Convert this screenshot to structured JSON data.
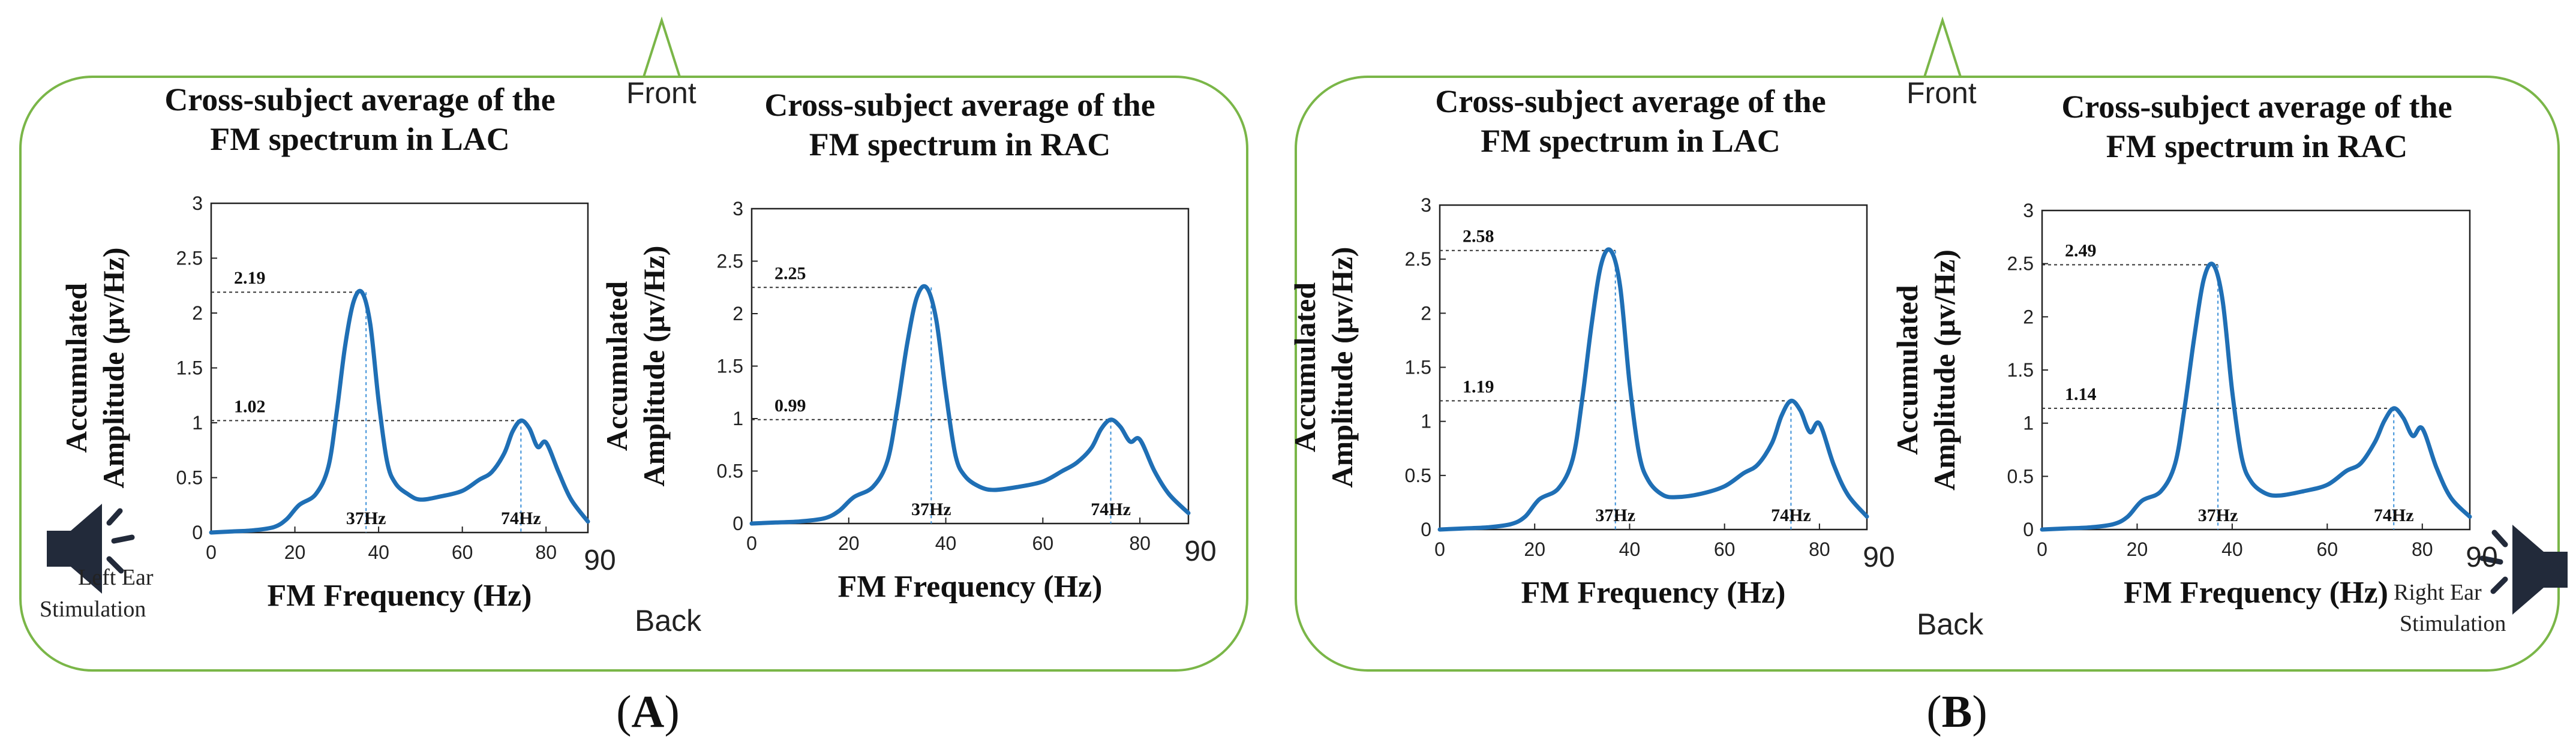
{
  "panels": [
    {
      "label": "A",
      "front_label": "Front",
      "back_label": "Back",
      "stimulation": "Left Ear Stimulation",
      "stimulation_lines": [
        "Left Ear",
        "Stimulation"
      ],
      "stimulation_side": "left"
    },
    {
      "label": "B",
      "front_label": "Front",
      "back_label": "Back",
      "stimulation": "Right Ear Stimulation",
      "stimulation_lines": [
        "Right Ear",
        "Stimulation"
      ],
      "stimulation_side": "right"
    }
  ],
  "colors": {
    "border": "#7ab648",
    "line": "#1f6fb5",
    "axis": "#222222",
    "guide": "#333333",
    "guide_vertical": "#3a8fd8",
    "speaker": "#222a3a"
  },
  "icons": [
    "speaker-icon",
    "triangle-front-marker"
  ],
  "chart_data": [
    {
      "id": "A-LAC",
      "type": "line",
      "title_lines": [
        "Cross-subject average of the",
        "FM spectrum in LAC"
      ],
      "xlabel": "FM Frequency (Hz)",
      "ylabel_lines": [
        "Accumulated",
        "Amplitude (μv/Hz)"
      ],
      "xlim": [
        0,
        90
      ],
      "ylim": [
        0,
        3
      ],
      "xticks": [
        "0",
        "20",
        "40",
        "60",
        "80",
        "90"
      ],
      "yticks": [
        "0",
        "0.5",
        "1",
        "1.5",
        "2",
        "2.5",
        "3"
      ],
      "x": [
        0,
        5,
        10,
        15,
        18,
        21,
        25,
        28,
        30,
        32,
        34,
        36,
        38,
        40,
        42,
        44,
        47,
        50,
        55,
        60,
        64,
        67,
        70,
        72,
        74,
        76,
        78,
        80,
        83,
        86,
        90
      ],
      "y": [
        0,
        0.01,
        0.02,
        0.05,
        0.12,
        0.25,
        0.35,
        0.6,
        1.1,
        1.7,
        2.1,
        2.19,
        1.9,
        1.2,
        0.65,
        0.45,
        0.35,
        0.3,
        0.33,
        0.38,
        0.48,
        0.55,
        0.72,
        0.92,
        1.02,
        0.95,
        0.78,
        0.82,
        0.55,
        0.3,
        0.1
      ],
      "peaks": [
        {
          "x": 37,
          "y": 2.19,
          "value_label": "2.19",
          "freq_label": "37Hz"
        },
        {
          "x": 74,
          "y": 1.02,
          "value_label": "1.02",
          "freq_label": "74Hz"
        }
      ]
    },
    {
      "id": "A-RAC",
      "type": "line",
      "title_lines": [
        "Cross-subject average of the",
        "FM spectrum in RAC"
      ],
      "xlabel": "FM Frequency (Hz)",
      "ylabel_lines": [
        "Accumulated",
        "Amplitude (μv/Hz)"
      ],
      "xlim": [
        0,
        90
      ],
      "ylim": [
        0,
        3
      ],
      "xticks": [
        "0",
        "20",
        "40",
        "60",
        "80",
        "90"
      ],
      "yticks": [
        "0",
        "0.5",
        "1",
        "1.5",
        "2",
        "2.5",
        "3"
      ],
      "x": [
        0,
        5,
        10,
        15,
        18,
        21,
        25,
        28,
        30,
        32,
        34,
        36,
        38,
        40,
        42,
        44,
        47,
        50,
        55,
        60,
        64,
        67,
        70,
        72,
        74,
        76,
        78,
        80,
        83,
        86,
        90
      ],
      "y": [
        0,
        0.01,
        0.02,
        0.05,
        0.12,
        0.25,
        0.35,
        0.6,
        1.1,
        1.7,
        2.15,
        2.25,
        1.95,
        1.25,
        0.65,
        0.45,
        0.35,
        0.32,
        0.35,
        0.4,
        0.5,
        0.58,
        0.72,
        0.9,
        0.99,
        0.92,
        0.78,
        0.8,
        0.5,
        0.28,
        0.1
      ],
      "peaks": [
        {
          "x": 37,
          "y": 2.25,
          "value_label": "2.25",
          "freq_label": "37Hz"
        },
        {
          "x": 74,
          "y": 0.99,
          "value_label": "0.99",
          "freq_label": "74Hz"
        }
      ]
    },
    {
      "id": "B-LAC",
      "type": "line",
      "title_lines": [
        "Cross-subject average of the",
        "FM spectrum in LAC"
      ],
      "xlabel": "FM Frequency (Hz)",
      "ylabel_lines": [
        "Accumulated",
        "Amplitude (μv/Hz)"
      ],
      "xlim": [
        0,
        90
      ],
      "ylim": [
        0,
        3
      ],
      "xticks": [
        "0",
        "20",
        "40",
        "60",
        "80",
        "90"
      ],
      "yticks": [
        "0",
        "0.5",
        "1",
        "1.5",
        "2",
        "2.5",
        "3"
      ],
      "x": [
        0,
        5,
        10,
        15,
        18,
        21,
        25,
        28,
        30,
        32,
        34,
        36,
        38,
        40,
        42,
        44,
        47,
        50,
        55,
        60,
        64,
        67,
        70,
        72,
        74,
        76,
        78,
        80,
        83,
        86,
        90
      ],
      "y": [
        0,
        0.01,
        0.02,
        0.05,
        0.12,
        0.28,
        0.38,
        0.65,
        1.2,
        1.9,
        2.45,
        2.58,
        2.25,
        1.35,
        0.7,
        0.45,
        0.32,
        0.3,
        0.33,
        0.4,
        0.52,
        0.6,
        0.8,
        1.05,
        1.19,
        1.1,
        0.9,
        0.98,
        0.6,
        0.32,
        0.12
      ],
      "peaks": [
        {
          "x": 37,
          "y": 2.58,
          "value_label": "2.58",
          "freq_label": "37Hz"
        },
        {
          "x": 74,
          "y": 1.19,
          "value_label": "1.19",
          "freq_label": "74Hz"
        }
      ]
    },
    {
      "id": "B-RAC",
      "type": "line",
      "title_lines": [
        "Cross-subject average of the",
        "FM spectrum in RAC"
      ],
      "xlabel": "FM Frequency (Hz)",
      "ylabel_lines": [
        "Accumulated",
        "Amplitude (μv/Hz)"
      ],
      "xlim": [
        0,
        90
      ],
      "ylim": [
        0,
        3
      ],
      "xticks": [
        "0",
        "20",
        "40",
        "60",
        "80",
        "90"
      ],
      "yticks": [
        "0",
        "0.5",
        "1",
        "1.5",
        "2",
        "2.5",
        "3"
      ],
      "x": [
        0,
        5,
        10,
        15,
        18,
        21,
        25,
        28,
        30,
        32,
        34,
        36,
        38,
        40,
        42,
        44,
        47,
        50,
        55,
        60,
        64,
        67,
        70,
        72,
        74,
        76,
        78,
        80,
        83,
        86,
        90
      ],
      "y": [
        0,
        0.01,
        0.02,
        0.05,
        0.12,
        0.27,
        0.36,
        0.62,
        1.15,
        1.8,
        2.35,
        2.49,
        2.15,
        1.3,
        0.68,
        0.45,
        0.34,
        0.32,
        0.36,
        0.42,
        0.55,
        0.62,
        0.82,
        1.02,
        1.14,
        1.05,
        0.88,
        0.95,
        0.58,
        0.3,
        0.12
      ],
      "peaks": [
        {
          "x": 37,
          "y": 2.49,
          "value_label": "2.49",
          "freq_label": "37Hz"
        },
        {
          "x": 74,
          "y": 1.14,
          "value_label": "1.14",
          "freq_label": "74Hz"
        }
      ]
    }
  ]
}
